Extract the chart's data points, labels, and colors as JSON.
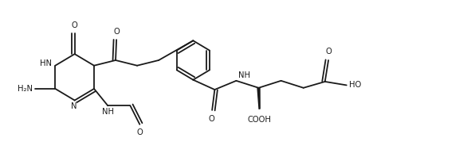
{
  "bg_color": "#ffffff",
  "line_color": "#1a1a1a",
  "line_width": 1.3,
  "font_size": 7.2,
  "figsize": [
    5.96,
    1.98
  ],
  "dpi": 100,
  "xlim": [
    0.0,
    11.0
  ],
  "ylim": [
    0.3,
    3.8
  ]
}
